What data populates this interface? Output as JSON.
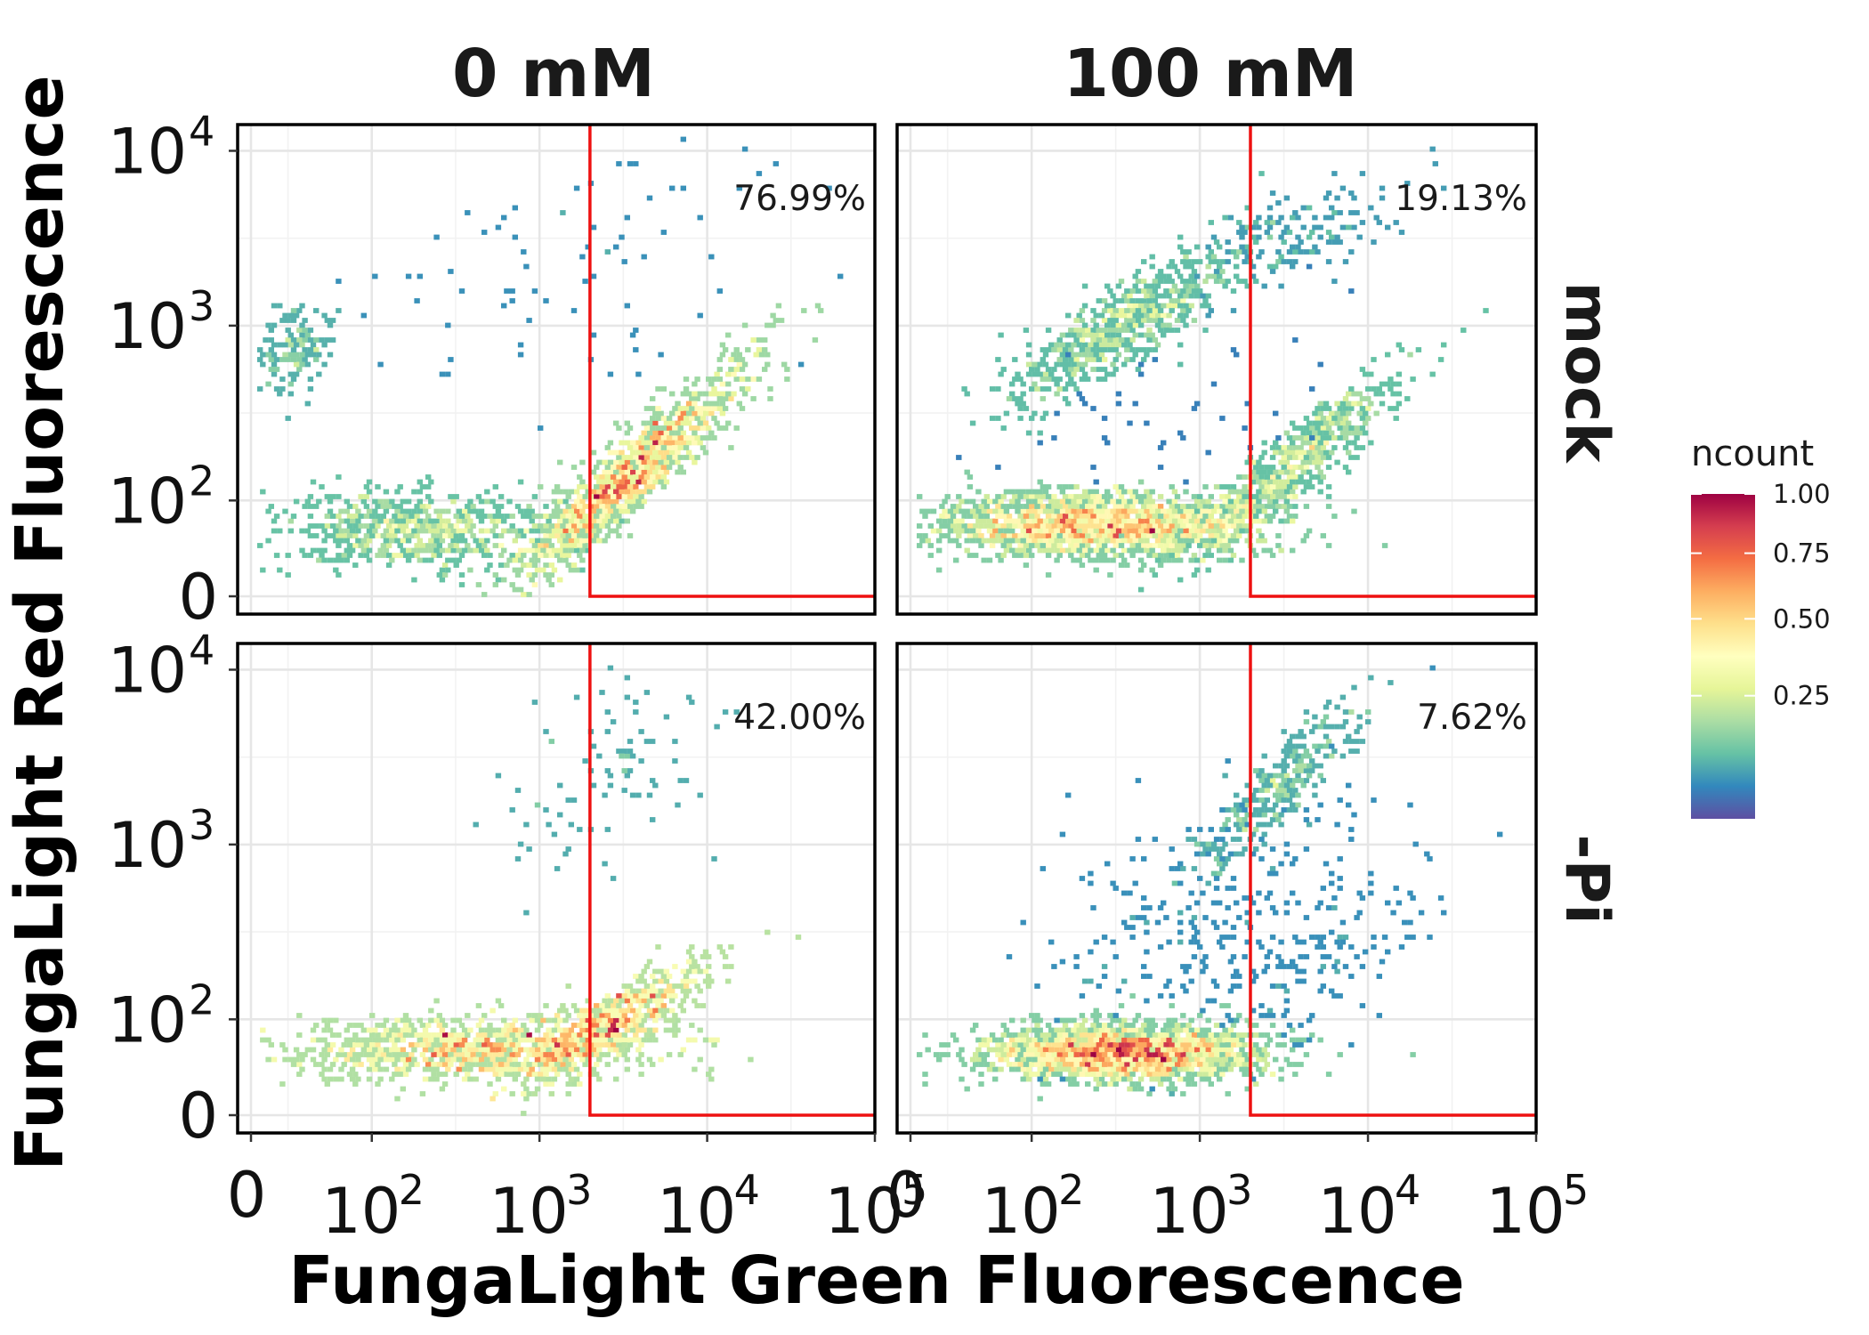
{
  "chart_data": {
    "type": "heatmap",
    "subtype": "faceted hexbin flow-cytometry density plot",
    "xlabel": "FungaLight Green Fluorescence",
    "ylabel": "FungaLight Red Fluorescence",
    "x_scale": "biexponential (log with linear zero)",
    "y_scale": "biexponential (log with linear zero)",
    "x_ticks": [
      {
        "base": "0",
        "exp": ""
      },
      {
        "base": "10",
        "exp": "2"
      },
      {
        "base": "10",
        "exp": "3"
      },
      {
        "base": "10",
        "exp": "4"
      },
      {
        "base": "10",
        "exp": "5"
      }
    ],
    "y_ticks": [
      {
        "base": "0",
        "exp": ""
      },
      {
        "base": "10",
        "exp": "2"
      },
      {
        "base": "10",
        "exp": "3"
      },
      {
        "base": "10",
        "exp": "4"
      }
    ],
    "xlim_log10": [
      1.2,
      5.0
    ],
    "ylim_log10": [
      1.35,
      4.15
    ],
    "gate": {
      "x_min": 2000,
      "y_min": 0
    },
    "grid": true,
    "columns": [
      "0 mM",
      "100 mM"
    ],
    "rows": [
      "mock",
      "-Pi"
    ],
    "panels": [
      {
        "column": "0 mM",
        "row": "mock",
        "percent": "76.99%",
        "populations": [
          {
            "cx": 2.25,
            "cy": 1.83,
            "sx": 0.42,
            "sy": 0.11,
            "rho": 0.0,
            "n": 700,
            "w": 0.55
          },
          {
            "cx": 3.55,
            "cy": 2.15,
            "sx": 0.35,
            "sy": 0.32,
            "rho": 0.93,
            "n": 1300,
            "w": 1.0
          },
          {
            "cx": 1.55,
            "cy": 2.85,
            "sx": 0.12,
            "sy": 0.12,
            "rho": 0.2,
            "n": 150,
            "w": 0.4
          },
          {
            "cx": 3.2,
            "cy": 3.3,
            "sx": 0.7,
            "sy": 0.4,
            "rho": 0.3,
            "n": 80,
            "w": 0.2
          }
        ]
      },
      {
        "column": "100 mM",
        "row": "mock",
        "percent": "19.13%",
        "populations": [
          {
            "cx": 2.4,
            "cy": 1.86,
            "sx": 0.5,
            "sy": 0.09,
            "rho": 0.0,
            "n": 1900,
            "w": 1.0
          },
          {
            "cx": 3.55,
            "cy": 2.2,
            "sx": 0.3,
            "sy": 0.25,
            "rho": 0.9,
            "n": 650,
            "w": 0.7
          },
          {
            "cx": 2.55,
            "cy": 3.0,
            "sx": 0.32,
            "sy": 0.22,
            "rho": 0.82,
            "n": 650,
            "w": 0.65
          },
          {
            "cx": 3.55,
            "cy": 3.5,
            "sx": 0.32,
            "sy": 0.18,
            "rho": 0.7,
            "n": 160,
            "w": 0.35
          },
          {
            "cx": 3.0,
            "cy": 2.5,
            "sx": 0.6,
            "sy": 0.35,
            "rho": 0.3,
            "n": 60,
            "w": 0.15
          }
        ]
      },
      {
        "column": "0 mM",
        "row": "-Pi",
        "percent": "42.00%",
        "populations": [
          {
            "cx": 2.6,
            "cy": 1.83,
            "sx": 0.55,
            "sy": 0.1,
            "rho": 0.1,
            "n": 1000,
            "w": 0.8
          },
          {
            "cx": 3.45,
            "cy": 2.0,
            "sx": 0.3,
            "sy": 0.18,
            "rho": 0.85,
            "n": 600,
            "w": 0.85
          },
          {
            "cx": 3.4,
            "cy": 3.35,
            "sx": 0.35,
            "sy": 0.3,
            "rho": 0.4,
            "n": 90,
            "w": 0.25
          }
        ]
      },
      {
        "column": "100 mM",
        "row": "-Pi",
        "percent": "7.62%",
        "populations": [
          {
            "cx": 2.55,
            "cy": 1.81,
            "sx": 0.42,
            "sy": 0.08,
            "rho": 0.0,
            "n": 2000,
            "w": 1.0
          },
          {
            "cx": 3.5,
            "cy": 3.35,
            "sx": 0.25,
            "sy": 0.25,
            "rho": 0.9,
            "n": 300,
            "w": 0.5
          },
          {
            "cx": 3.05,
            "cy": 2.6,
            "sx": 0.5,
            "sy": 0.4,
            "rho": 0.45,
            "n": 260,
            "w": 0.25
          },
          {
            "cx": 3.7,
            "cy": 2.3,
            "sx": 0.35,
            "sy": 0.3,
            "rho": 0.7,
            "n": 120,
            "w": 0.25
          }
        ]
      }
    ],
    "legend": {
      "title": "ncount",
      "labels": [
        "1.00",
        "0.75",
        "0.50",
        "0.25"
      ],
      "label_values": [
        1.0,
        0.75,
        0.5,
        0.25
      ],
      "colormap": "Spectral (reversed)",
      "colors": [
        "#5e4fa2",
        "#3288bd",
        "#66c2a5",
        "#abdda4",
        "#e6f598",
        "#ffffbf",
        "#fee08b",
        "#fdae61",
        "#f46d43",
        "#d53e4f",
        "#9e0142"
      ]
    },
    "gate_color": "#ee1111"
  }
}
